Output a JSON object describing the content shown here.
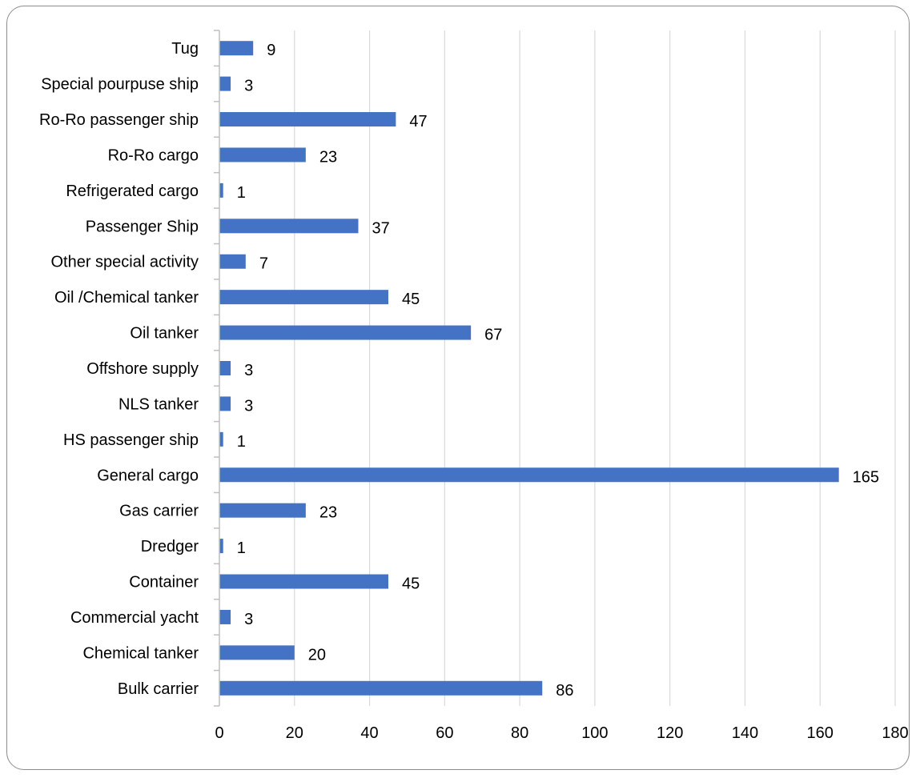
{
  "chart_data": {
    "type": "bar",
    "orientation": "horizontal",
    "title": "",
    "xlabel": "",
    "ylabel": "",
    "categories": [
      "Bulk carrier",
      "Chemical tanker",
      "Commercial yacht",
      "Container",
      "Dredger",
      "Gas carrier",
      "General cargo",
      "HS passenger ship",
      "NLS tanker",
      "Offshore supply",
      "Oil tanker",
      "Oil /Chemical tanker",
      "Other special activity",
      "Passenger Ship",
      "Refrigerated cargo",
      "Ro-Ro cargo",
      "Ro-Ro passenger ship",
      "Special pourpuse ship",
      "Tug"
    ],
    "values": [
      86,
      20,
      3,
      45,
      1,
      23,
      165,
      1,
      3,
      3,
      67,
      45,
      7,
      37,
      1,
      23,
      47,
      3,
      9
    ],
    "xlim": [
      0,
      180
    ],
    "x_ticks": [
      0,
      20,
      40,
      60,
      80,
      100,
      120,
      140,
      160,
      180
    ],
    "grid": "vertical",
    "data_labels": true,
    "legend": "none",
    "colors": {
      "bar": "#4472c4",
      "grid": "#d9d9d9",
      "axis": "#bfbfbf",
      "frame": "#8c8c8c"
    }
  }
}
